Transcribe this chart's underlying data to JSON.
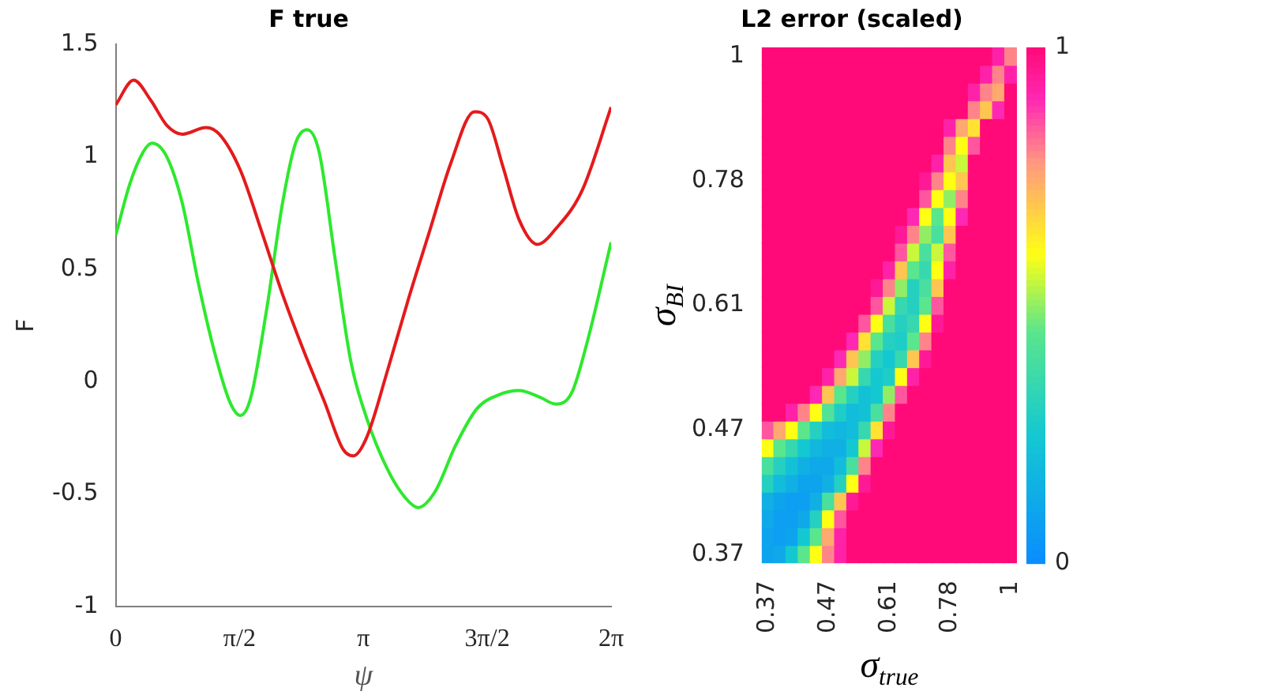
{
  "chart_data": [
    {
      "type": "line",
      "title": "F true",
      "xlabel": "ψ",
      "ylabel": "F",
      "xlim": [
        0,
        6.2832
      ],
      "xticks": [
        0,
        {
          "value": 1.5708,
          "label": "π/2"
        },
        {
          "value": 3.1416,
          "label": "π"
        },
        {
          "value": 4.7124,
          "label": "3π/2"
        },
        {
          "value": 6.2832,
          "label": "2π"
        }
      ],
      "ylim": [
        -1,
        1.5
      ],
      "yticks": [
        -1,
        -0.5,
        0,
        0.5,
        1,
        1.5
      ],
      "marker": "none",
      "line_style": "solid",
      "series": [
        {
          "color": "#e41a1c",
          "x": [
            0,
            0.227,
            0.447,
            0.647,
            0.847,
            1.147,
            1.314,
            1.581,
            1.848,
            2.114,
            2.381,
            2.648,
            2.882,
            3.015,
            3.181,
            3.448,
            3.715,
            3.982,
            4.249,
            4.549,
            4.716,
            4.916,
            5.116,
            5.349,
            5.583,
            5.916,
            6.283
          ],
          "values": [
            1.23,
            1.34,
            1.25,
            1.14,
            1.1,
            1.13,
            1.1,
            0.94,
            0.67,
            0.39,
            0.14,
            -0.09,
            -0.3,
            -0.33,
            -0.25,
            0.05,
            0.37,
            0.67,
            0.97,
            1.2,
            1.17,
            0.95,
            0.72,
            0.61,
            0.68,
            0.85,
            1.22
          ]
        },
        {
          "color": "#2ee82e",
          "x": [
            0,
            0.18,
            0.347,
            0.46,
            0.647,
            0.847,
            1.047,
            1.247,
            1.447,
            1.581,
            1.714,
            1.914,
            2.114,
            2.281,
            2.428,
            2.581,
            2.781,
            2.982,
            3.181,
            3.448,
            3.682,
            3.835,
            4.049,
            4.316,
            4.582,
            4.849,
            5.116,
            5.383,
            5.583,
            5.783,
            5.983,
            6.283
          ],
          "values": [
            0.65,
            0.88,
            1.02,
            1.06,
            1.0,
            0.79,
            0.44,
            0.14,
            -0.09,
            -0.15,
            -0.07,
            0.32,
            0.79,
            1.06,
            1.12,
            1.02,
            0.55,
            0.09,
            -0.16,
            -0.39,
            -0.52,
            -0.56,
            -0.49,
            -0.28,
            -0.12,
            -0.06,
            -0.04,
            -0.07,
            -0.1,
            -0.05,
            0.18,
            0.62
          ]
        }
      ]
    },
    {
      "type": "heatmap",
      "title": "L2 error (scaled)",
      "xlabel": "σ$_{true}$",
      "ylabel": "σ$_{BI}$",
      "clim": [
        0,
        1
      ],
      "cticks": [
        0,
        1
      ],
      "categories": [
        "0.37",
        null,
        null,
        null,
        null,
        "0.47",
        null,
        null,
        null,
        null,
        "0.61",
        null,
        null,
        null,
        null,
        "0.78",
        null,
        null,
        null,
        null,
        "1"
      ],
      "y_categories": [
        "1",
        null,
        null,
        null,
        null,
        null,
        null,
        "0.78",
        null,
        null,
        null,
        null,
        null,
        null,
        "0.61",
        null,
        null,
        null,
        null,
        null,
        null,
        "0.47",
        null,
        null,
        null,
        null,
        null,
        null,
        "0.37"
      ],
      "cells": [
        [
          1,
          1,
          1,
          1,
          1,
          1,
          1,
          1,
          1,
          1,
          1,
          1,
          1,
          1,
          1,
          1,
          1,
          1,
          1,
          0.92,
          0.8
        ],
        [
          1,
          1,
          1,
          1,
          1,
          1,
          1,
          1,
          1,
          1,
          1,
          1,
          1,
          1,
          1,
          1,
          1,
          1,
          0.92,
          0.8,
          0.92
        ],
        [
          1,
          1,
          1,
          1,
          1,
          1,
          1,
          1,
          1,
          1,
          1,
          1,
          1,
          1,
          1,
          1,
          1,
          0.92,
          0.8,
          0.75,
          1
        ],
        [
          1,
          1,
          1,
          1,
          1,
          1,
          1,
          1,
          1,
          1,
          1,
          1,
          1,
          1,
          1,
          1,
          1,
          0.8,
          0.7,
          0.9,
          1
        ],
        [
          1,
          1,
          1,
          1,
          1,
          1,
          1,
          1,
          1,
          1,
          1,
          1,
          1,
          1,
          1,
          0.92,
          0.75,
          0.65,
          1,
          1,
          1
        ],
        [
          1,
          1,
          1,
          1,
          1,
          1,
          1,
          1,
          1,
          1,
          1,
          1,
          1,
          1,
          1,
          0.8,
          0.6,
          0.85,
          1,
          1,
          1
        ],
        [
          1,
          1,
          1,
          1,
          1,
          1,
          1,
          1,
          1,
          1,
          1,
          1,
          1,
          1,
          0.92,
          0.7,
          0.55,
          1,
          1,
          1,
          1
        ],
        [
          1,
          1,
          1,
          1,
          1,
          1,
          1,
          1,
          1,
          1,
          1,
          1,
          1,
          0.95,
          0.8,
          0.6,
          0.7,
          1,
          1,
          1,
          1
        ],
        [
          1,
          1,
          1,
          1,
          1,
          1,
          1,
          1,
          1,
          1,
          1,
          1,
          1,
          0.85,
          0.6,
          0.5,
          0.8,
          1,
          1,
          1,
          1
        ],
        [
          1,
          1,
          1,
          1,
          1,
          1,
          1,
          1,
          1,
          1,
          1,
          1,
          0.9,
          0.6,
          0.45,
          0.6,
          0.9,
          1,
          1,
          1,
          1
        ],
        [
          1,
          1,
          1,
          1,
          1,
          1,
          1,
          1,
          1,
          1,
          1,
          0.95,
          0.8,
          0.5,
          0.4,
          0.7,
          1,
          1,
          1,
          1,
          1
        ],
        [
          1,
          1,
          1,
          1,
          1,
          1,
          1,
          1,
          1,
          1,
          1,
          0.85,
          0.55,
          0.4,
          0.55,
          0.85,
          1,
          1,
          1,
          1,
          1
        ],
        [
          1,
          1,
          1,
          1,
          1,
          1,
          1,
          1,
          1,
          1,
          0.92,
          0.7,
          0.45,
          0.35,
          0.6,
          0.92,
          1,
          1,
          1,
          1,
          1
        ],
        [
          1,
          1,
          1,
          1,
          1,
          1,
          1,
          1,
          1,
          0.95,
          0.8,
          0.5,
          0.3,
          0.4,
          0.7,
          1,
          1,
          1,
          1,
          1,
          1
        ],
        [
          1,
          1,
          1,
          1,
          1,
          1,
          1,
          1,
          1,
          0.85,
          0.55,
          0.35,
          0.3,
          0.45,
          0.85,
          1,
          1,
          1,
          1,
          1,
          1
        ],
        [
          1,
          1,
          1,
          1,
          1,
          1,
          1,
          1,
          0.85,
          0.6,
          0.4,
          0.3,
          0.35,
          0.6,
          0.95,
          1,
          1,
          1,
          1,
          1,
          1
        ],
        [
          1,
          1,
          1,
          1,
          1,
          1,
          1,
          0.9,
          0.65,
          0.45,
          0.3,
          0.28,
          0.45,
          0.8,
          1,
          1,
          1,
          1,
          1,
          1,
          1
        ],
        [
          1,
          1,
          1,
          1,
          1,
          1,
          0.9,
          0.7,
          0.5,
          0.3,
          0.25,
          0.35,
          0.7,
          0.95,
          1,
          1,
          1,
          1,
          1,
          1,
          1
        ],
        [
          1,
          1,
          1,
          1,
          1,
          0.92,
          0.75,
          0.55,
          0.35,
          0.25,
          0.28,
          0.6,
          0.92,
          1,
          1,
          1,
          1,
          1,
          1,
          1,
          1
        ],
        [
          1,
          1,
          1,
          1,
          0.9,
          0.7,
          0.45,
          0.3,
          0.22,
          0.25,
          0.5,
          0.85,
          1,
          1,
          1,
          1,
          1,
          1,
          1,
          1,
          1
        ],
        [
          1,
          1,
          0.92,
          0.8,
          0.6,
          0.42,
          0.28,
          0.2,
          0.22,
          0.4,
          0.8,
          1,
          1,
          1,
          1,
          1,
          1,
          1,
          1,
          1,
          1
        ],
        [
          0.85,
          0.75,
          0.6,
          0.45,
          0.3,
          0.2,
          0.18,
          0.2,
          0.35,
          0.65,
          0.95,
          1,
          1,
          1,
          1,
          1,
          1,
          1,
          1,
          1,
          1
        ],
        [
          0.6,
          0.45,
          0.35,
          0.25,
          0.18,
          0.15,
          0.15,
          0.25,
          0.55,
          0.9,
          1,
          1,
          1,
          1,
          1,
          1,
          1,
          1,
          1,
          1,
          1
        ],
        [
          0.4,
          0.3,
          0.22,
          0.15,
          0.12,
          0.12,
          0.2,
          0.4,
          0.8,
          1,
          1,
          1,
          1,
          1,
          1,
          1,
          1,
          1,
          1,
          1,
          1
        ],
        [
          0.3,
          0.2,
          0.15,
          0.1,
          0.1,
          0.15,
          0.3,
          0.6,
          0.95,
          1,
          1,
          1,
          1,
          1,
          1,
          1,
          1,
          1,
          1,
          1,
          1
        ],
        [
          0.15,
          0.1,
          0.08,
          0.08,
          0.15,
          0.4,
          0.7,
          0.95,
          1,
          1,
          1,
          1,
          1,
          1,
          1,
          1,
          1,
          1,
          1,
          1,
          1
        ],
        [
          0.12,
          0.08,
          0.08,
          0.12,
          0.3,
          0.6,
          0.85,
          1,
          1,
          1,
          1,
          1,
          1,
          1,
          1,
          1,
          1,
          1,
          1,
          1,
          1
        ],
        [
          0.1,
          0.08,
          0.1,
          0.25,
          0.45,
          0.75,
          0.92,
          1,
          1,
          1,
          1,
          1,
          1,
          1,
          1,
          1,
          1,
          1,
          1,
          1,
          1
        ],
        [
          0.1,
          0.12,
          0.25,
          0.45,
          0.6,
          0.8,
          0.92,
          1,
          1,
          1,
          1,
          1,
          1,
          1,
          1,
          1,
          1,
          1,
          1,
          1,
          1
        ]
      ]
    }
  ]
}
